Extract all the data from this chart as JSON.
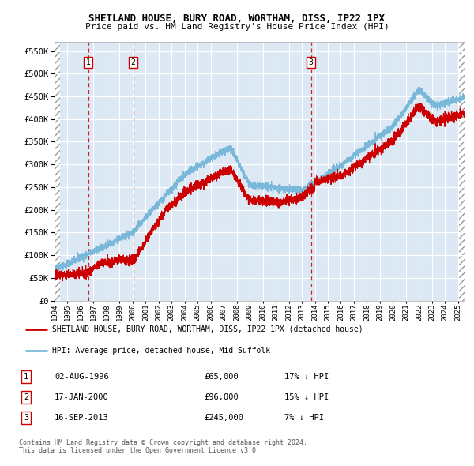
{
  "title": "SHETLAND HOUSE, BURY ROAD, WORTHAM, DISS, IP22 1PX",
  "subtitle": "Price paid vs. HM Land Registry's House Price Index (HPI)",
  "hpi_line_color": "#7ab8d9",
  "price_line_color": "#cc0000",
  "dot_color": "#cc0000",
  "background_color": "#dce9f5",
  "grid_color": "#ffffff",
  "dashed_line_color": "#cc0000",
  "ylim": [
    0,
    570000
  ],
  "yticks": [
    0,
    50000,
    100000,
    150000,
    200000,
    250000,
    300000,
    350000,
    400000,
    450000,
    500000,
    550000
  ],
  "ytick_labels": [
    "£0",
    "£50K",
    "£100K",
    "£150K",
    "£200K",
    "£250K",
    "£300K",
    "£350K",
    "£400K",
    "£450K",
    "£500K",
    "£550K"
  ],
  "xlim_start": 1994.0,
  "xlim_end": 2025.5,
  "sale_dates": [
    1996.58,
    2000.04,
    2013.71
  ],
  "sale_prices": [
    65000,
    96000,
    245000
  ],
  "sale_labels": [
    "1",
    "2",
    "3"
  ],
  "legend_line1": "SHETLAND HOUSE, BURY ROAD, WORTHAM, DISS, IP22 1PX (detached house)",
  "legend_line2": "HPI: Average price, detached house, Mid Suffolk",
  "table_rows": [
    {
      "num": "1",
      "date": "02-AUG-1996",
      "price": "£65,000",
      "hpi": "17% ↓ HPI"
    },
    {
      "num": "2",
      "date": "17-JAN-2000",
      "price": "£96,000",
      "hpi": "15% ↓ HPI"
    },
    {
      "num": "3",
      "date": "16-SEP-2013",
      "price": "£245,000",
      "hpi": "7% ↓ HPI"
    }
  ],
  "footnote": "Contains HM Land Registry data © Crown copyright and database right 2024.\nThis data is licensed under the Open Government Licence v3.0."
}
